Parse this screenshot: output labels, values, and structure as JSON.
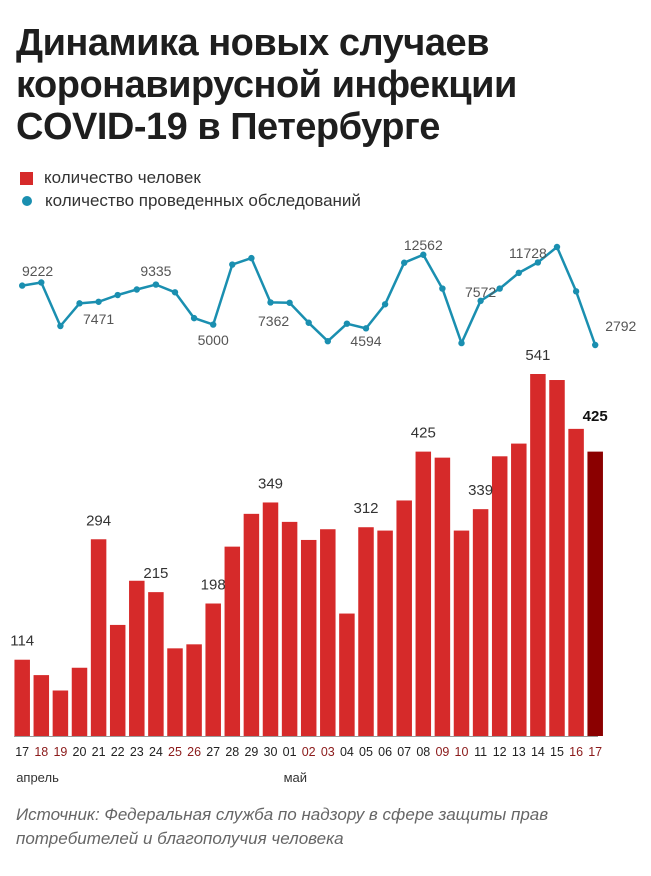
{
  "title": "Динамика новых случаев коронавирусной инфекции COVID-19 в Петербурге",
  "legend": {
    "cases": "количество человек",
    "tests": "количество проведенных обследований"
  },
  "colors": {
    "bar": "#d62a2a",
    "bar_last": "#8b0000",
    "line": "#1a8fb0",
    "weekday_label": "#222222",
    "weekend_label": "#8b1a1a"
  },
  "source": "Источник: Федеральная служба по надзору в сфере защиты прав потребителей и благополучия человека",
  "chart_data": {
    "type": "bar",
    "title": "Динамика новых случаев коронавирусной инфекции COVID-19 в Петербурге",
    "categories": [
      "17",
      "18",
      "19",
      "20",
      "21",
      "22",
      "23",
      "24",
      "25",
      "26",
      "27",
      "28",
      "29",
      "30",
      "01",
      "02",
      "03",
      "04",
      "05",
      "06",
      "07",
      "08",
      "09",
      "10",
      "11",
      "12",
      "13",
      "14",
      "15",
      "16",
      "17"
    ],
    "weekend": [
      false,
      true,
      true,
      false,
      false,
      false,
      false,
      false,
      true,
      true,
      false,
      false,
      false,
      false,
      false,
      true,
      true,
      false,
      false,
      false,
      false,
      false,
      true,
      true,
      false,
      false,
      false,
      false,
      false,
      true,
      true
    ],
    "month_labels": [
      {
        "index": 0,
        "label": "апрель"
      },
      {
        "index": 14,
        "label": "май"
      }
    ],
    "series": [
      {
        "name": "количество человек",
        "type": "bar",
        "values": [
          114,
          91,
          68,
          102,
          294,
          166,
          232,
          215,
          131,
          137,
          198,
          283,
          332,
          349,
          320,
          293,
          309,
          183,
          312,
          307,
          352,
          425,
          416,
          307,
          339,
          418,
          437,
          541,
          532,
          459,
          425
        ],
        "labels": {
          "0": "114",
          "4": "294",
          "7": "215",
          "10": "198",
          "13": "349",
          "18": "312",
          "21": "425",
          "24": "339",
          "27": "541",
          "30": "425"
        }
      },
      {
        "name": "количество проведенных обследований",
        "type": "line",
        "values": [
          9222,
          9560,
          4850,
          7300,
          7471,
          8200,
          8800,
          9335,
          8500,
          5700,
          5000,
          11500,
          12200,
          7400,
          7362,
          5200,
          3200,
          5100,
          4594,
          7200,
          11700,
          12562,
          8900,
          3000,
          7572,
          8900,
          10600,
          11728,
          13400,
          8600,
          2792
        ],
        "labels": {
          "0": "9222",
          "4": "7471",
          "7": "9335",
          "10": "5000",
          "14": "7362",
          "18": "4594",
          "21": "12562",
          "24": "7572",
          "27": "11728",
          "30": "2792"
        }
      }
    ],
    "grid": false,
    "legend_position": "top-left"
  }
}
